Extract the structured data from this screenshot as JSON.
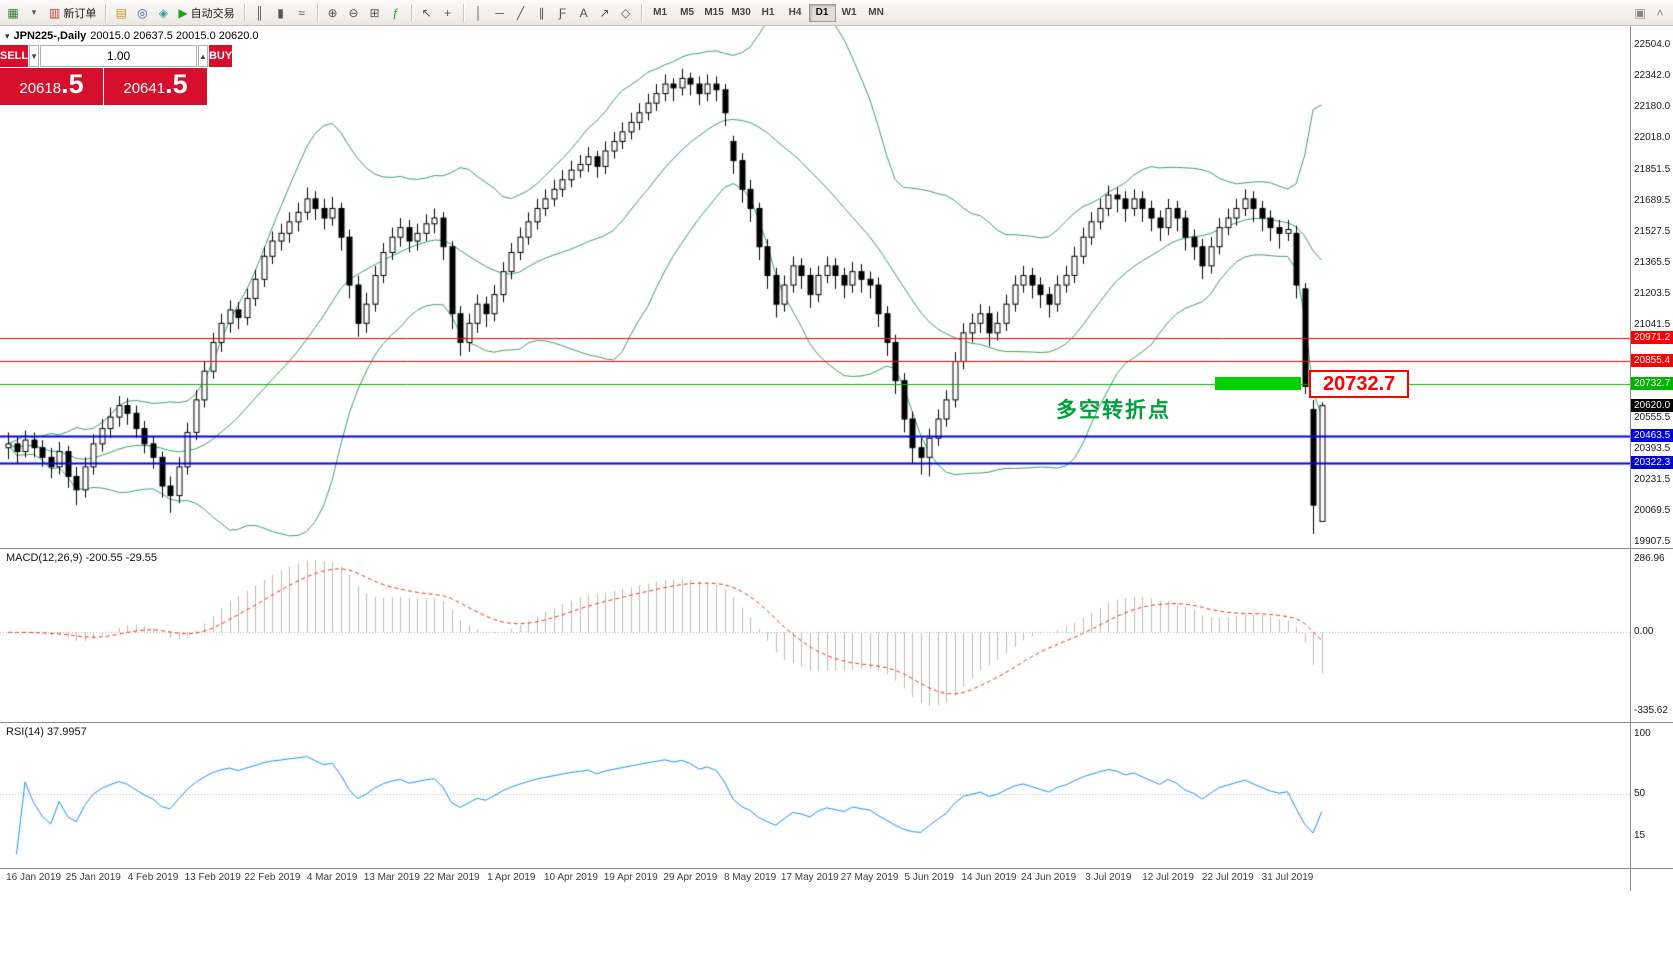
{
  "toolbar": {
    "new_order_label": "新订单",
    "autotrading_label": "自动交易",
    "timeframes": [
      "M1",
      "M5",
      "M15",
      "M30",
      "H1",
      "H4",
      "D1",
      "W1",
      "MN"
    ],
    "active_timeframe": "D1"
  },
  "icons": {
    "new_chart": "▦",
    "dropdown_caret": "▾",
    "new_order": "▥",
    "market_watch": "▤",
    "navigator": "◎",
    "metaeditor": "◈",
    "autotrading_play": "▶",
    "bar_chart": "║",
    "candlestick_chart": "▮",
    "line_chart": "≈",
    "zoom_in": "⊕",
    "zoom_out": "⊖",
    "tile_windows": "⊞",
    "indicators": "ƒ",
    "cursor": "↖",
    "crosshair": "+",
    "vertical_line": "│",
    "horizontal_line": "─",
    "trendline": "╱",
    "channel": "∥",
    "fibonacci": "Ƒ",
    "text_tool": "A",
    "arrow_tool": "↗",
    "shapes": "◇",
    "print": "▣",
    "collapse": "˄",
    "symbol_marker": "▾",
    "spinner_up": "▲",
    "spinner_down": "▼"
  },
  "order_panel": {
    "sell_label": "SELL",
    "buy_label": "BUY",
    "volume": "1.00",
    "sell_price_main": "20618",
    "sell_price_big": ".5",
    "buy_price_main": "20641",
    "buy_price_big": ".5",
    "color": "#d6102c"
  },
  "chart": {
    "symbol_label": "JPN225-,Daily",
    "ohlc_label": "20015.0 20637.5 20015.0 20620.0",
    "annotation": "多空转折点",
    "highlight_label": "20732.7",
    "colors": {
      "bands": "#3f9e68",
      "bull": "#ffffff",
      "bear": "#000000",
      "highlight": "#00d200",
      "callout": "#ff0000",
      "annotation": "#00a03c",
      "current_bg": "#000000"
    },
    "price_axis_labels": [
      "22504.0",
      "22342.0",
      "22180.0",
      "22018.0",
      "21851.5",
      "21689.5",
      "21527.5",
      "21365.5",
      "21203.5",
      "21041.5",
      "20555.5",
      "20393.5",
      "20231.5",
      "20069.5",
      "19907.5"
    ],
    "lines": [
      {
        "price": 20971.2,
        "label": "20971.2",
        "color": "#ff0000",
        "width": 1
      },
      {
        "price": 20855.4,
        "label": "20855.4",
        "color": "#ff0000",
        "width": 1
      },
      {
        "price": 20732.7,
        "label": "20732.7",
        "color": "#00b400",
        "width": 1
      },
      {
        "price": 20463.5,
        "label": "20463.5",
        "color": "#0000dd",
        "width": 2
      },
      {
        "price": 20322.3,
        "label": "20322.3",
        "color": "#0000dd",
        "width": 2
      }
    ],
    "current_price": {
      "price": 20620.0,
      "label": "20620.0"
    },
    "dates": [
      "16 Jan 2019",
      "25 Jan 2019",
      "4 Feb 2019",
      "13 Feb 2019",
      "22 Feb 2019",
      "4 Mar 2019",
      "13 Mar 2019",
      "22 Mar 2019",
      "1 Apr 2019",
      "10 Apr 2019",
      "19 Apr 2019",
      "29 Apr 2019",
      "8 May 2019",
      "17 May 2019",
      "27 May 2019",
      "5 Jun 2019",
      "14 Jun 2019",
      "24 Jun 2019",
      "3 Jul 2019",
      "12 Jul 2019",
      "22 Jul 2019",
      "31 Jul 2019"
    ],
    "candles": [
      [
        20400,
        20480,
        20340,
        20420
      ],
      [
        20420,
        20460,
        20320,
        20380
      ],
      [
        20380,
        20490,
        20350,
        20440
      ],
      [
        20440,
        20480,
        20350,
        20400
      ],
      [
        20400,
        20440,
        20300,
        20350
      ],
      [
        20350,
        20400,
        20240,
        20300
      ],
      [
        20300,
        20430,
        20260,
        20380
      ],
      [
        20380,
        20410,
        20190,
        20250
      ],
      [
        20250,
        20300,
        20100,
        20180
      ],
      [
        20180,
        20350,
        20140,
        20300
      ],
      [
        20300,
        20470,
        20260,
        20420
      ],
      [
        20420,
        20550,
        20380,
        20500
      ],
      [
        20500,
        20610,
        20450,
        20560
      ],
      [
        20560,
        20670,
        20510,
        20620
      ],
      [
        20620,
        20660,
        20520,
        20580
      ],
      [
        20580,
        20620,
        20450,
        20500
      ],
      [
        20500,
        20540,
        20370,
        20420
      ],
      [
        20420,
        20460,
        20290,
        20350
      ],
      [
        20350,
        20380,
        20140,
        20200
      ],
      [
        20200,
        20250,
        20060,
        20150
      ],
      [
        20150,
        20350,
        20110,
        20300
      ],
      [
        20300,
        20530,
        20260,
        20480
      ],
      [
        20480,
        20700,
        20440,
        20650
      ],
      [
        20650,
        20850,
        20610,
        20800
      ],
      [
        20800,
        21000,
        20760,
        20950
      ],
      [
        20950,
        21100,
        20900,
        21050
      ],
      [
        21050,
        21170,
        21000,
        21120
      ],
      [
        21120,
        21160,
        21020,
        21080
      ],
      [
        21080,
        21230,
        21040,
        21180
      ],
      [
        21180,
        21330,
        21140,
        21280
      ],
      [
        21280,
        21450,
        21240,
        21400
      ],
      [
        21400,
        21530,
        21360,
        21480
      ],
      [
        21480,
        21570,
        21430,
        21520
      ],
      [
        21520,
        21630,
        21470,
        21580
      ],
      [
        21580,
        21680,
        21530,
        21630
      ],
      [
        21630,
        21760,
        21590,
        21700
      ],
      [
        21700,
        21740,
        21590,
        21650
      ],
      [
        21650,
        21700,
        21540,
        21600
      ],
      [
        21600,
        21710,
        21560,
        21650
      ],
      [
        21650,
        21680,
        21430,
        21500
      ],
      [
        21500,
        21540,
        21180,
        21250
      ],
      [
        21250,
        21300,
        20980,
        21050
      ],
      [
        21050,
        21210,
        21000,
        21150
      ],
      [
        21150,
        21350,
        21110,
        21300
      ],
      [
        21300,
        21470,
        21260,
        21420
      ],
      [
        21420,
        21550,
        21380,
        21500
      ],
      [
        21500,
        21600,
        21450,
        21550
      ],
      [
        21550,
        21590,
        21420,
        21480
      ],
      [
        21480,
        21570,
        21430,
        21520
      ],
      [
        21520,
        21620,
        21480,
        21570
      ],
      [
        21570,
        21650,
        21520,
        21600
      ],
      [
        21600,
        21630,
        21380,
        21450
      ],
      [
        21450,
        21480,
        21020,
        21100
      ],
      [
        21100,
        21140,
        20880,
        20950
      ],
      [
        20950,
        21100,
        20900,
        21050
      ],
      [
        21050,
        21200,
        21000,
        21150
      ],
      [
        21150,
        21190,
        21030,
        21100
      ],
      [
        21100,
        21250,
        21060,
        21200
      ],
      [
        21200,
        21370,
        21160,
        21320
      ],
      [
        21320,
        21470,
        21280,
        21420
      ],
      [
        21420,
        21550,
        21380,
        21500
      ],
      [
        21500,
        21630,
        21460,
        21580
      ],
      [
        21580,
        21700,
        21540,
        21650
      ],
      [
        21650,
        21750,
        21610,
        21700
      ],
      [
        21700,
        21800,
        21660,
        21750
      ],
      [
        21750,
        21850,
        21710,
        21800
      ],
      [
        21800,
        21900,
        21760,
        21850
      ],
      [
        21850,
        21930,
        21810,
        21880
      ],
      [
        21880,
        21970,
        21840,
        21920
      ],
      [
        21920,
        21950,
        21810,
        21870
      ],
      [
        21870,
        22000,
        21830,
        21950
      ],
      [
        21950,
        22050,
        21910,
        22000
      ],
      [
        22000,
        22100,
        21960,
        22050
      ],
      [
        22050,
        22150,
        22010,
        22100
      ],
      [
        22100,
        22200,
        22060,
        22150
      ],
      [
        22150,
        22250,
        22110,
        22200
      ],
      [
        22200,
        22300,
        22160,
        22250
      ],
      [
        22250,
        22350,
        22210,
        22300
      ],
      [
        22300,
        22330,
        22210,
        22280
      ],
      [
        22280,
        22380,
        22240,
        22330
      ],
      [
        22330,
        22360,
        22240,
        22300
      ],
      [
        22300,
        22340,
        22190,
        22250
      ],
      [
        22250,
        22350,
        22210,
        22300
      ],
      [
        22300,
        22340,
        22210,
        22270
      ],
      [
        22270,
        22300,
        22080,
        22150
      ],
      [
        22000,
        22030,
        21830,
        21900
      ],
      [
        21900,
        21940,
        21680,
        21750
      ],
      [
        21750,
        21800,
        21580,
        21650
      ],
      [
        21650,
        21680,
        21380,
        21450
      ],
      [
        21450,
        21490,
        21230,
        21300
      ],
      [
        21300,
        21340,
        21080,
        21150
      ],
      [
        21150,
        21300,
        21110,
        21250
      ],
      [
        21250,
        21400,
        21210,
        21350
      ],
      [
        21350,
        21390,
        21230,
        21300
      ],
      [
        21300,
        21340,
        21130,
        21200
      ],
      [
        21200,
        21350,
        21160,
        21300
      ],
      [
        21300,
        21400,
        21260,
        21350
      ],
      [
        21350,
        21390,
        21230,
        21300
      ],
      [
        21300,
        21340,
        21180,
        21250
      ],
      [
        21250,
        21370,
        21210,
        21320
      ],
      [
        21320,
        21360,
        21210,
        21280
      ],
      [
        21280,
        21320,
        21180,
        21250
      ],
      [
        21250,
        21290,
        21030,
        21100
      ],
      [
        21100,
        21140,
        20880,
        20950
      ],
      [
        20950,
        20990,
        20680,
        20750
      ],
      [
        20750,
        20790,
        20480,
        20550
      ],
      [
        20550,
        20590,
        20320,
        20400
      ],
      [
        20400,
        20450,
        20260,
        20350
      ],
      [
        20350,
        20500,
        20250,
        20450
      ],
      [
        20450,
        20600,
        20410,
        20550
      ],
      [
        20550,
        20700,
        20510,
        20650
      ],
      [
        20650,
        20900,
        20610,
        20850
      ],
      [
        20850,
        21050,
        20810,
        21000
      ],
      [
        21000,
        21100,
        20950,
        21050
      ],
      [
        21050,
        21150,
        21000,
        21100
      ],
      [
        21100,
        21140,
        20930,
        21000
      ],
      [
        21000,
        21110,
        20960,
        21050
      ],
      [
        21050,
        21200,
        21010,
        21150
      ],
      [
        21150,
        21300,
        21110,
        21250
      ],
      [
        21250,
        21350,
        21210,
        21300
      ],
      [
        21300,
        21340,
        21180,
        21250
      ],
      [
        21250,
        21290,
        21130,
        21200
      ],
      [
        21200,
        21240,
        21080,
        21150
      ],
      [
        21150,
        21300,
        21110,
        21250
      ],
      [
        21250,
        21350,
        21210,
        21300
      ],
      [
        21300,
        21450,
        21260,
        21400
      ],
      [
        21400,
        21550,
        21360,
        21500
      ],
      [
        21500,
        21630,
        21460,
        21580
      ],
      [
        21580,
        21700,
        21540,
        21650
      ],
      [
        21650,
        21770,
        21610,
        21720
      ],
      [
        21720,
        21760,
        21630,
        21700
      ],
      [
        21700,
        21740,
        21580,
        21650
      ],
      [
        21650,
        21750,
        21610,
        21700
      ],
      [
        21700,
        21740,
        21580,
        21650
      ],
      [
        21650,
        21690,
        21530,
        21600
      ],
      [
        21600,
        21640,
        21480,
        21550
      ],
      [
        21550,
        21700,
        21510,
        21650
      ],
      [
        21650,
        21690,
        21530,
        21600
      ],
      [
        21600,
        21640,
        21430,
        21500
      ],
      [
        21500,
        21540,
        21380,
        21450
      ],
      [
        21450,
        21490,
        21280,
        21350
      ],
      [
        21350,
        21500,
        21310,
        21450
      ],
      [
        21450,
        21600,
        21410,
        21550
      ],
      [
        21550,
        21650,
        21510,
        21600
      ],
      [
        21600,
        21700,
        21560,
        21650
      ],
      [
        21650,
        21750,
        21610,
        21700
      ],
      [
        21700,
        21740,
        21580,
        21650
      ],
      [
        21650,
        21690,
        21530,
        21600
      ],
      [
        21600,
        21640,
        21480,
        21550
      ],
      [
        21550,
        21590,
        21440,
        21520
      ],
      [
        21520,
        21590,
        21480,
        21540
      ],
      [
        21520,
        21560,
        21180,
        21250
      ],
      [
        21230,
        21260,
        20680,
        20720
      ],
      [
        20600,
        20650,
        19950,
        20100
      ],
      [
        20015,
        20637.5,
        20015,
        20620
      ]
    ]
  },
  "macd": {
    "label": "MACD(12,26,9) -200.55 -29.55",
    "axis": [
      "286.96",
      "0.00",
      "-335.62"
    ]
  },
  "rsi": {
    "label": "RSI(14) 37.9957",
    "axis_labels": [
      "100",
      "50",
      "15"
    ],
    "axis_values": [
      100,
      50,
      15
    ]
  }
}
